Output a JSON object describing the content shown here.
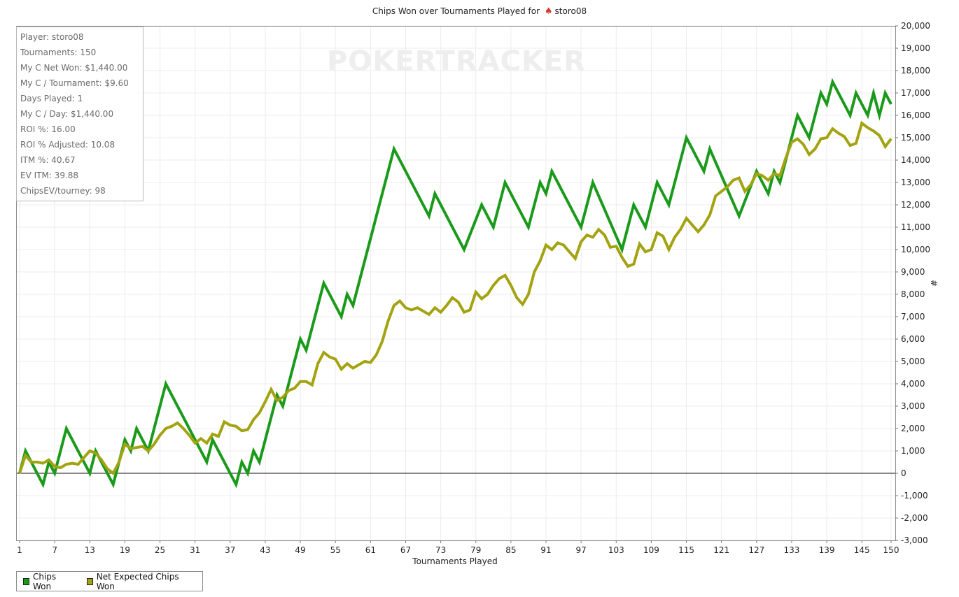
{
  "header": {
    "title_prefix": "Chips Won over Tournaments Played for",
    "player_name": "storo08",
    "icon": "spade-icon"
  },
  "watermark": "POKERTRACKER",
  "stats": [
    "Player: storo08",
    "Tournaments: 150",
    "My C Net Won: $1,440.00",
    "My C / Tournament: $9.60",
    "Days Played: 1",
    "My C / Day: $1,440.00",
    "ROI %: 16.00",
    "ROI % Adjusted: 10.08",
    "ITM %: 40.67",
    "EV ITM: 39.88",
    "ChipsEV/tourney: 98"
  ],
  "legend": [
    {
      "label": "Chips Won",
      "color": "#1a9a1a"
    },
    {
      "label": "Net Expected Chips Won",
      "color": "#a3a312"
    }
  ],
  "chart_data": {
    "type": "line",
    "xlabel": "Tournaments Played",
    "ylabel": "#",
    "xlim": [
      1,
      150
    ],
    "ylim": [
      -3000,
      20000
    ],
    "x_ticks": [
      1,
      7,
      13,
      19,
      25,
      31,
      37,
      43,
      49,
      55,
      61,
      67,
      73,
      79,
      85,
      91,
      97,
      103,
      109,
      115,
      121,
      127,
      133,
      139,
      145,
      150
    ],
    "y_ticks": [
      -3000,
      -2000,
      -1000,
      0,
      1000,
      2000,
      3000,
      4000,
      5000,
      6000,
      7000,
      8000,
      9000,
      10000,
      11000,
      12000,
      13000,
      14000,
      15000,
      16000,
      17000,
      18000,
      19000,
      20000
    ],
    "y_tick_labels": [
      "-3,000",
      "-2,000",
      "-1,000",
      "0",
      "1,000",
      "2,000",
      "3,000",
      "4,000",
      "5,000",
      "6,000",
      "7,000",
      "8,000",
      "9,000",
      "10,000",
      "11,000",
      "12,000",
      "13,000",
      "14,000",
      "15,000",
      "16,000",
      "17,000",
      "18,000",
      "19,000",
      "20,000"
    ],
    "grid": true,
    "legend_position": "bottom-left",
    "series": [
      {
        "name": "Chips Won",
        "color": "#1a9a1a",
        "points": [
          [
            1,
            0
          ],
          [
            2,
            1000
          ],
          [
            5,
            -500
          ],
          [
            6,
            500
          ],
          [
            7,
            0
          ],
          [
            9,
            2000
          ],
          [
            13,
            0
          ],
          [
            14,
            1000
          ],
          [
            17,
            -500
          ],
          [
            19,
            1500
          ],
          [
            20,
            1000
          ],
          [
            21,
            2000
          ],
          [
            23,
            1000
          ],
          [
            26,
            4000
          ],
          [
            33,
            500
          ],
          [
            34,
            1500
          ],
          [
            38,
            -500
          ],
          [
            39,
            500
          ],
          [
            40,
            0
          ],
          [
            41,
            1000
          ],
          [
            42,
            500
          ],
          [
            45,
            3500
          ],
          [
            46,
            3000
          ],
          [
            49,
            6000
          ],
          [
            50,
            5500
          ],
          [
            53,
            8500
          ],
          [
            56,
            7000
          ],
          [
            57,
            8000
          ],
          [
            58,
            7500
          ],
          [
            65,
            14500
          ],
          [
            71,
            11500
          ],
          [
            72,
            12500
          ],
          [
            77,
            10000
          ],
          [
            80,
            12000
          ],
          [
            82,
            11000
          ],
          [
            84,
            13000
          ],
          [
            88,
            11000
          ],
          [
            90,
            13000
          ],
          [
            91,
            12500
          ],
          [
            92,
            13500
          ],
          [
            97,
            11000
          ],
          [
            99,
            13000
          ],
          [
            104,
            10000
          ],
          [
            106,
            12000
          ],
          [
            108,
            11000
          ],
          [
            110,
            13000
          ],
          [
            112,
            12000
          ],
          [
            115,
            15000
          ],
          [
            118,
            13500
          ],
          [
            119,
            14500
          ],
          [
            124,
            11500
          ],
          [
            127,
            13500
          ],
          [
            129,
            12500
          ],
          [
            130,
            13500
          ],
          [
            131,
            13000
          ],
          [
            134,
            16000
          ],
          [
            136,
            15000
          ],
          [
            138,
            17000
          ],
          [
            139,
            16500
          ],
          [
            140,
            17500
          ],
          [
            143,
            16000
          ],
          [
            144,
            17000
          ],
          [
            146,
            16000
          ],
          [
            147,
            17000
          ],
          [
            148,
            16000
          ],
          [
            149,
            17000
          ],
          [
            150,
            16500
          ]
        ]
      },
      {
        "name": "Net Expected Chips Won",
        "color": "#a3a312",
        "points": [
          [
            1,
            0
          ],
          [
            2,
            800
          ],
          [
            3,
            500
          ],
          [
            4,
            500
          ],
          [
            5,
            450
          ],
          [
            6,
            600
          ],
          [
            7,
            300
          ],
          [
            8,
            250
          ],
          [
            9,
            400
          ],
          [
            10,
            450
          ],
          [
            11,
            400
          ],
          [
            12,
            700
          ],
          [
            13,
            1000
          ],
          [
            14,
            900
          ],
          [
            15,
            600
          ],
          [
            16,
            200
          ],
          [
            17,
            0
          ],
          [
            18,
            500
          ],
          [
            19,
            1300
          ],
          [
            20,
            1100
          ],
          [
            21,
            1150
          ],
          [
            22,
            1200
          ],
          [
            23,
            1000
          ],
          [
            24,
            1300
          ],
          [
            25,
            1700
          ],
          [
            26,
            2000
          ],
          [
            27,
            2100
          ],
          [
            28,
            2250
          ],
          [
            29,
            2000
          ],
          [
            30,
            1700
          ],
          [
            31,
            1350
          ],
          [
            32,
            1550
          ],
          [
            33,
            1350
          ],
          [
            34,
            1750
          ],
          [
            35,
            1650
          ],
          [
            36,
            2300
          ],
          [
            37,
            2150
          ],
          [
            38,
            2100
          ],
          [
            39,
            1900
          ],
          [
            40,
            1950
          ],
          [
            41,
            2400
          ],
          [
            42,
            2700
          ],
          [
            43,
            3200
          ],
          [
            44,
            3750
          ],
          [
            45,
            3250
          ],
          [
            46,
            3400
          ],
          [
            47,
            3700
          ],
          [
            48,
            3800
          ],
          [
            49,
            4100
          ],
          [
            50,
            4100
          ],
          [
            51,
            3950
          ],
          [
            52,
            4900
          ],
          [
            53,
            5400
          ],
          [
            54,
            5200
          ],
          [
            55,
            5100
          ],
          [
            56,
            4650
          ],
          [
            57,
            4900
          ],
          [
            58,
            4700
          ],
          [
            59,
            4850
          ],
          [
            60,
            5000
          ],
          [
            61,
            4950
          ],
          [
            62,
            5300
          ],
          [
            63,
            5900
          ],
          [
            64,
            6800
          ],
          [
            65,
            7500
          ],
          [
            66,
            7700
          ],
          [
            67,
            7400
          ],
          [
            68,
            7300
          ],
          [
            69,
            7400
          ],
          [
            70,
            7250
          ],
          [
            71,
            7100
          ],
          [
            72,
            7400
          ],
          [
            73,
            7200
          ],
          [
            74,
            7500
          ],
          [
            75,
            7850
          ],
          [
            76,
            7650
          ],
          [
            77,
            7200
          ],
          [
            78,
            7300
          ],
          [
            79,
            8100
          ],
          [
            80,
            7800
          ],
          [
            81,
            8000
          ],
          [
            82,
            8400
          ],
          [
            83,
            8700
          ],
          [
            84,
            8850
          ],
          [
            85,
            8400
          ],
          [
            86,
            7850
          ],
          [
            87,
            7550
          ],
          [
            88,
            8000
          ],
          [
            89,
            9000
          ],
          [
            90,
            9500
          ],
          [
            91,
            10200
          ],
          [
            92,
            10000
          ],
          [
            93,
            10300
          ],
          [
            94,
            10200
          ],
          [
            95,
            9900
          ],
          [
            96,
            9600
          ],
          [
            97,
            10350
          ],
          [
            98,
            10650
          ],
          [
            99,
            10550
          ],
          [
            100,
            10900
          ],
          [
            101,
            10650
          ],
          [
            102,
            10100
          ],
          [
            103,
            10150
          ],
          [
            104,
            9650
          ],
          [
            105,
            9250
          ],
          [
            106,
            9350
          ],
          [
            107,
            10250
          ],
          [
            108,
            9900
          ],
          [
            109,
            10000
          ],
          [
            110,
            10750
          ],
          [
            111,
            10600
          ],
          [
            112,
            10000
          ],
          [
            113,
            10550
          ],
          [
            114,
            10900
          ],
          [
            115,
            11400
          ],
          [
            116,
            11100
          ],
          [
            117,
            10800
          ],
          [
            118,
            11100
          ],
          [
            119,
            11550
          ],
          [
            120,
            12400
          ],
          [
            121,
            12600
          ],
          [
            122,
            12800
          ],
          [
            123,
            13100
          ],
          [
            124,
            13200
          ],
          [
            125,
            12600
          ],
          [
            126,
            12900
          ],
          [
            127,
            13400
          ],
          [
            128,
            13300
          ],
          [
            129,
            13100
          ],
          [
            130,
            13400
          ],
          [
            131,
            13300
          ],
          [
            132,
            14100
          ],
          [
            133,
            14800
          ],
          [
            134,
            14950
          ],
          [
            135,
            14700
          ],
          [
            136,
            14250
          ],
          [
            137,
            14500
          ],
          [
            138,
            14950
          ],
          [
            139,
            15000
          ],
          [
            140,
            15400
          ],
          [
            141,
            15200
          ],
          [
            142,
            15050
          ],
          [
            143,
            14650
          ],
          [
            144,
            14750
          ],
          [
            145,
            15650
          ],
          [
            146,
            15450
          ],
          [
            147,
            15300
          ],
          [
            148,
            15100
          ],
          [
            149,
            14600
          ],
          [
            150,
            14950
          ]
        ]
      }
    ]
  }
}
